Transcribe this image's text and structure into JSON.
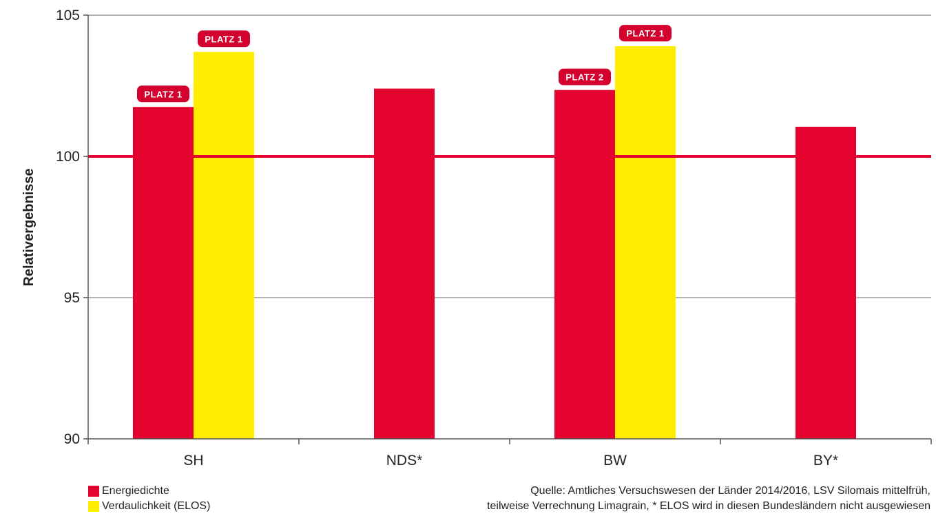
{
  "colors": {
    "energie": "#e4032e",
    "verdaulich": "#ffed00",
    "reference_line": "#e4032e",
    "grid": "#b3b3b3",
    "badge": "#d4002d"
  },
  "chart_data": {
    "type": "bar",
    "title": "",
    "xlabel": "",
    "ylabel": "Relativergebnisse",
    "ylim": [
      90,
      105
    ],
    "yticks": [
      "90",
      "95",
      "100",
      "105"
    ],
    "reference_value": 100,
    "categories": [
      "SH",
      "NDS*",
      "BW",
      "BY*"
    ],
    "series": [
      {
        "name": "Energiedichte",
        "values": [
          101.75,
          102.4,
          102.35,
          101.05
        ]
      },
      {
        "name": "Verdaulichkeit (ELOS)",
        "values": [
          103.7,
          null,
          103.9,
          null
        ]
      }
    ],
    "annotations": [
      {
        "text": "PLATZ 1",
        "category": "SH",
        "series": 0
      },
      {
        "text": "PLATZ 1",
        "category": "SH",
        "series": 1
      },
      {
        "text": "PLATZ 2",
        "category": "BW",
        "series": 0
      },
      {
        "text": "PLATZ 1",
        "category": "BW",
        "series": 1
      }
    ]
  },
  "legend": {
    "items": [
      {
        "label": "Energiedichte"
      },
      {
        "label": "Verdaulichkeit (ELOS)"
      }
    ]
  },
  "source": {
    "line1": "Quelle: Amtliches Versuchswesen der Länder 2014/2016, LSV Silomais mittelfrüh,",
    "line2": "teilweise Verrechnung Limagrain, * ELOS wird in diesen Bundesländern nicht ausgewiesen"
  }
}
